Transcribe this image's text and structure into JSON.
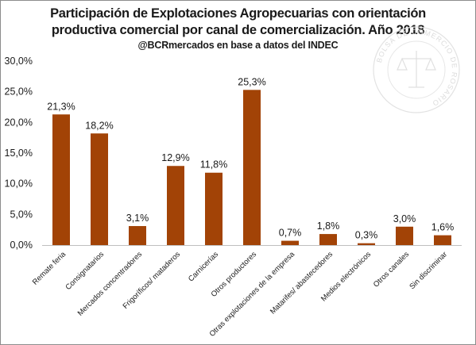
{
  "header": {
    "title_line1": "Participación de Explotaciones Agropecuarias con orientación",
    "title_line2": "productiva comercial por canal de comercialización. Año 2018",
    "subtitle": "@BCRmercados en base a datos del INDEC"
  },
  "watermark": {
    "text": "BOLSA DE COMERCIO DE ROSARIO"
  },
  "colors": {
    "bar": "#A24306",
    "axis": "#bfbfbf",
    "text": "#1a1a1a"
  },
  "chart_data": {
    "type": "bar",
    "title": "Participación de Explotaciones Agropecuarias con orientación productiva comercial por canal de comercialización. Año 2018",
    "subtitle": "@BCRmercados en base a datos del INDEC",
    "categories": [
      "Remate feria",
      "Consignatarios",
      "Mercados concentradores",
      "Frigoríficos/ mataderos",
      "Carnicerías",
      "Otros productores",
      "Otras explotaciones de la empresa",
      "Matarifes/ abastecedores",
      "Medios electrónicos",
      "Otros canales",
      "Sin discriminar"
    ],
    "values": [
      21.3,
      18.2,
      3.1,
      12.9,
      11.8,
      25.3,
      0.7,
      1.8,
      0.3,
      3.0,
      1.6
    ],
    "data_labels": [
      "21,3%",
      "18,2%",
      "3,1%",
      "12,9%",
      "11,8%",
      "25,3%",
      "0,7%",
      "1,8%",
      "0,3%",
      "3,0%",
      "1,6%"
    ],
    "yticks": [
      0,
      5,
      10,
      15,
      20,
      25,
      30
    ],
    "ytick_labels": [
      "0,0%",
      "5,0%",
      "10,0%",
      "15,0%",
      "20,0%",
      "25,0%",
      "30,0%"
    ],
    "ylim": [
      0,
      30
    ],
    "grid": false,
    "legend": "none"
  }
}
